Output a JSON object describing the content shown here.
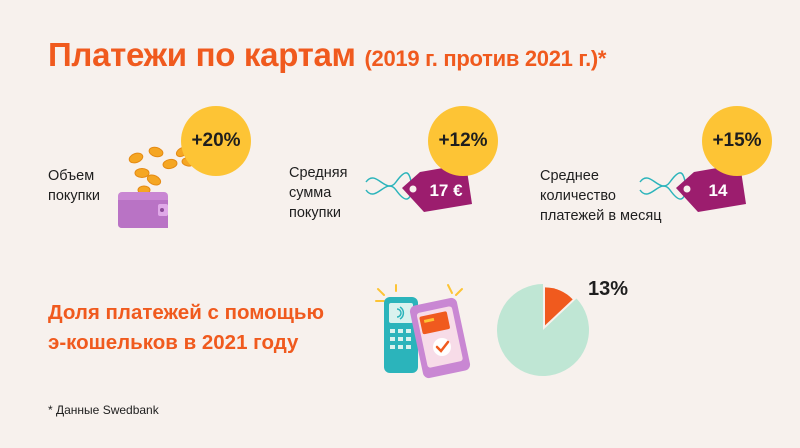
{
  "title": {
    "main": "Платежи по картам",
    "sub": "(2019 г. против 2021 г.)*"
  },
  "metrics": [
    {
      "label_lines": [
        "Объем",
        "покупки"
      ],
      "change": "+20%"
    },
    {
      "label_lines": [
        "Средняя",
        "сумма",
        "покупки"
      ],
      "change": "+12%",
      "tag_value": "17 €"
    },
    {
      "label_lines": [
        "Среднее",
        "количество",
        "платежей в месяц"
      ],
      "change": "+15%",
      "tag_value": "14"
    }
  ],
  "share": {
    "lines": [
      "Доля платежей с помощью",
      "э-кошельков в 2021 году"
    ],
    "value_label": "13%",
    "fraction": 0.13
  },
  "footnote": "* Данные Swedbank",
  "colors": {
    "accent": "#f05a1e",
    "badge": "#fdc435",
    "tag": "#9c1d6e",
    "wallet": "#c987d3",
    "pie_rest": "#bfe6d4",
    "pie_share": "#f05a1e",
    "string": "#2bb4bb"
  },
  "icons": [
    "coins-wallet-icon",
    "price-tag-icon",
    "payment-terminal-icon",
    "smartphone-icon"
  ]
}
